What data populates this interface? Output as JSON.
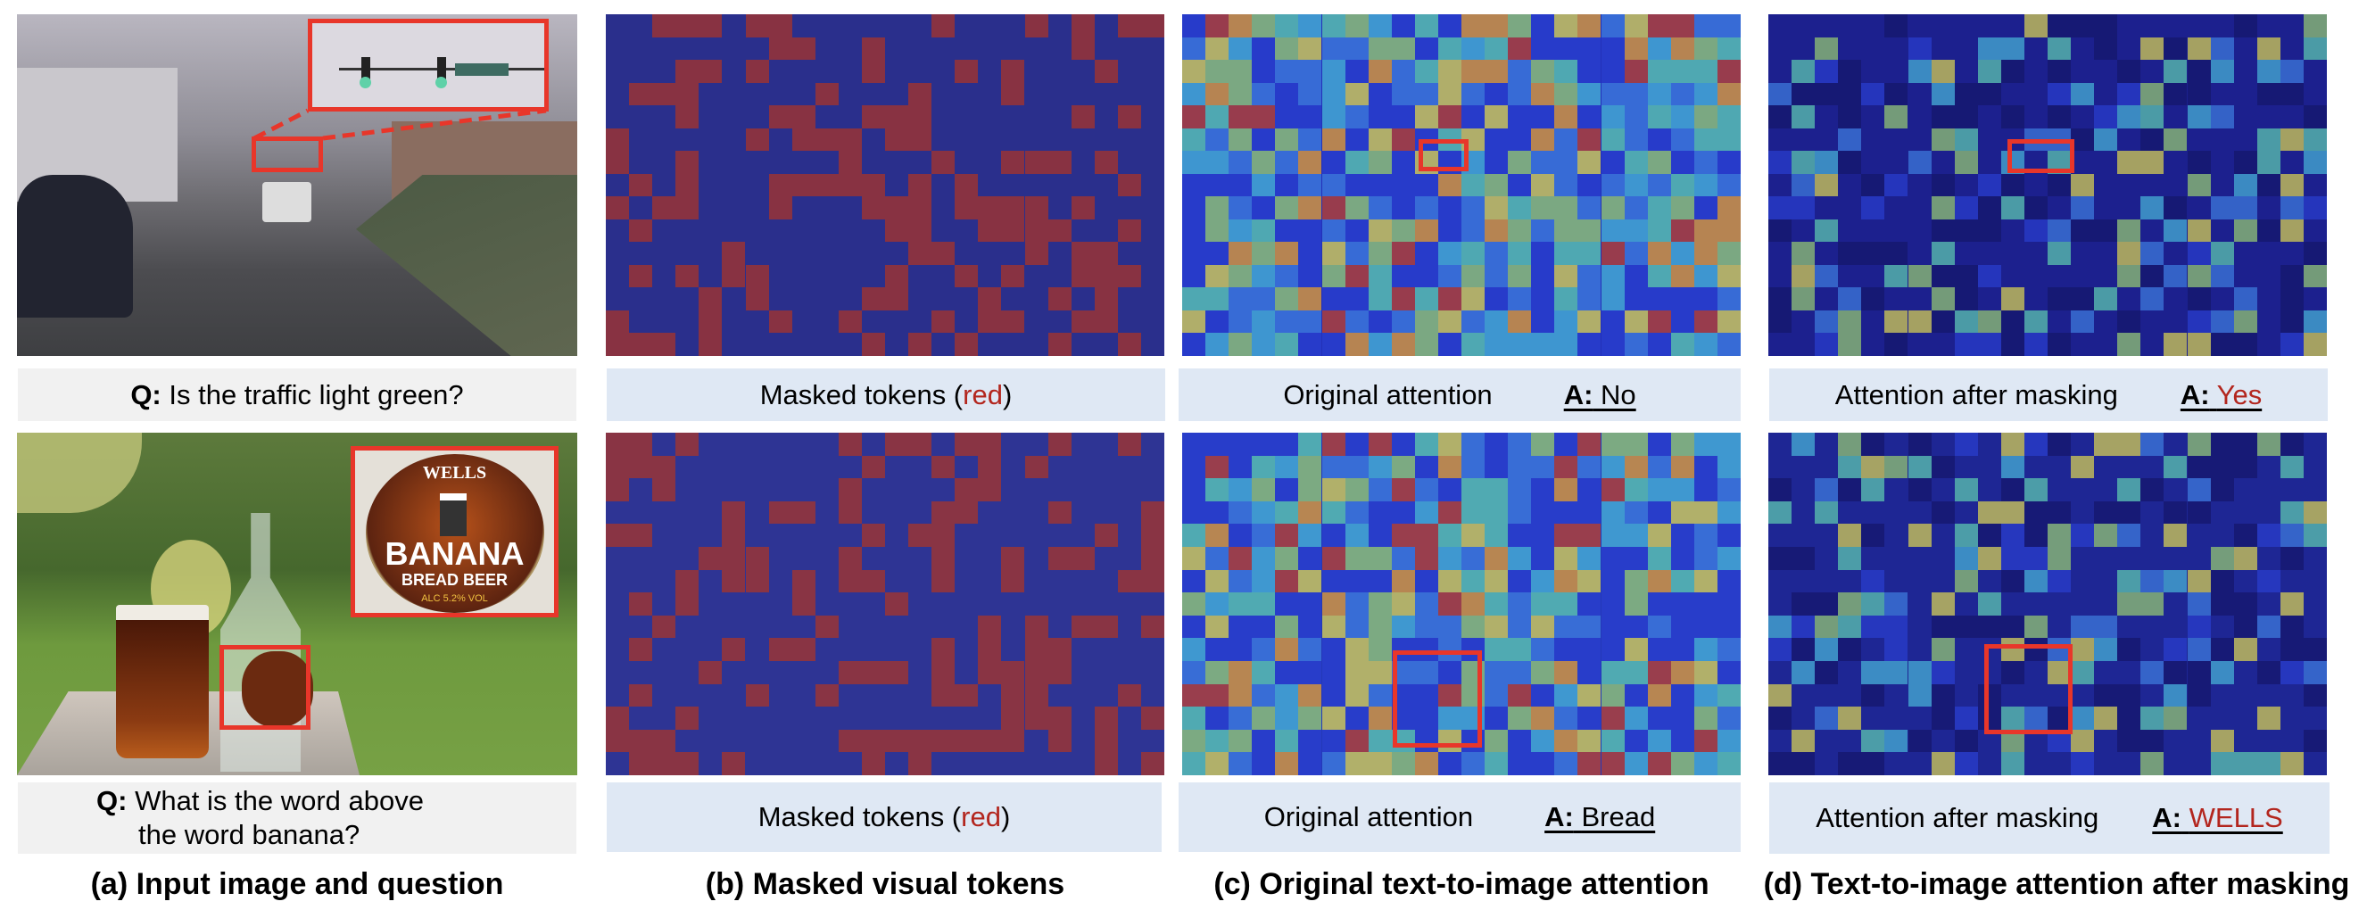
{
  "rows": [
    {
      "question_prefix": "Q:",
      "question": "Is the traffic light green?",
      "original_answer_prefix": "A:",
      "original_answer": "No",
      "masked_answer_prefix": "A:",
      "masked_answer": "Yes"
    },
    {
      "question_prefix": "Q:",
      "question_line1": "What is the word above",
      "question_line2": "the word banana?",
      "original_answer_prefix": "A:",
      "original_answer": "Bread",
      "masked_answer_prefix": "A:",
      "masked_answer": "WELLS",
      "label_text": {
        "top": "WELLS",
        "main": "BANANA",
        "sub": "BREAD BEER",
        "alc": "ALC 5.2% VOL"
      }
    }
  ],
  "masked_label": {
    "prefix": "Masked tokens (",
    "highlight": "red",
    "suffix": ")"
  },
  "original_attention_label": "Original attention",
  "after_masking_label": "Attention after masking",
  "captions": {
    "a": "(a) Input image and question",
    "b": "(b) Masked visual tokens",
    "c": "(c) Original text-to-image attention",
    "d": "(d) Text-to-image attention after masking"
  },
  "colors": {
    "highlight_red": "#e8362a",
    "wrong_answer_red": "#b3261e",
    "question_box": "#f1f1f1",
    "label_box": "#dfe8f4",
    "mask_overlay_blue": "#1a1fa0"
  }
}
